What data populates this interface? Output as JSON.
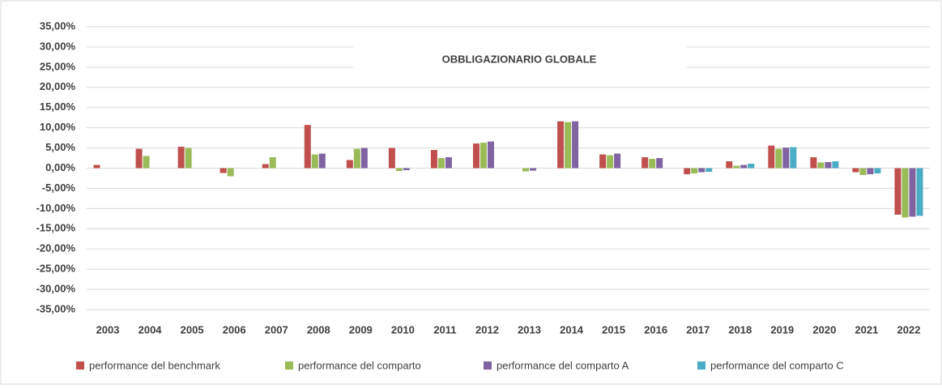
{
  "chart_data": {
    "type": "bar",
    "title": "OBBLIGAZIONARIO GLOBALE",
    "categories": [
      "2003",
      "2004",
      "2005",
      "2006",
      "2007",
      "2008",
      "2009",
      "2010",
      "2011",
      "2012",
      "2013",
      "2014",
      "2015",
      "2016",
      "2017",
      "2018",
      "2019",
      "2020",
      "2021",
      "2022"
    ],
    "series": [
      {
        "name": "performance del benchmark",
        "color": "#c0504d",
        "values": [
          0.8,
          4.8,
          5.3,
          -1.2,
          1.0,
          10.7,
          2.0,
          5.0,
          4.5,
          6.1,
          null,
          11.6,
          3.4,
          2.7,
          -1.5,
          1.7,
          5.6,
          2.7,
          -1.0,
          -11.5
        ]
      },
      {
        "name": "performance del comparto",
        "color": "#9bbb59",
        "values": [
          null,
          3.0,
          5.0,
          -2.0,
          2.7,
          3.4,
          4.8,
          -0.7,
          2.5,
          6.3,
          -0.8,
          11.4,
          3.2,
          2.3,
          -1.3,
          0.6,
          4.8,
          1.4,
          -1.7,
          -12.2
        ]
      },
      {
        "name": "performance del comparto A",
        "color": "#8064a2",
        "values": [
          null,
          null,
          null,
          null,
          null,
          3.6,
          5.0,
          -0.5,
          2.7,
          6.6,
          -0.6,
          11.6,
          3.6,
          2.5,
          -1.0,
          0.8,
          5.1,
          1.5,
          -1.5,
          -12.0
        ]
      },
      {
        "name": "performance del comparto C",
        "color": "#4bacc6",
        "values": [
          null,
          null,
          null,
          null,
          null,
          null,
          null,
          null,
          null,
          null,
          null,
          null,
          null,
          null,
          -0.9,
          1.1,
          5.2,
          1.7,
          -1.3,
          -11.8
        ]
      }
    ],
    "ylim": [
      -35,
      35
    ],
    "yticks": [
      {
        "value": -35,
        "label": "-35,00%"
      },
      {
        "value": -30,
        "label": "-30,00%"
      },
      {
        "value": -25,
        "label": "-25,00%"
      },
      {
        "value": -20,
        "label": "-20,00%"
      },
      {
        "value": -15,
        "label": "-15,00%"
      },
      {
        "value": -10,
        "label": "-10,00%"
      },
      {
        "value": -5,
        "label": "-5,00%"
      },
      {
        "value": 0,
        "label": "0,00%"
      },
      {
        "value": 5,
        "label": "5,00%"
      },
      {
        "value": 10,
        "label": "10,00%"
      },
      {
        "value": 15,
        "label": "15,00%"
      },
      {
        "value": 20,
        "label": "20,00%"
      },
      {
        "value": 25,
        "label": "25,00%"
      },
      {
        "value": 30,
        "label": "30,00%"
      },
      {
        "value": 35,
        "label": "35,00%"
      }
    ],
    "grid": true,
    "legend": "bottom"
  }
}
